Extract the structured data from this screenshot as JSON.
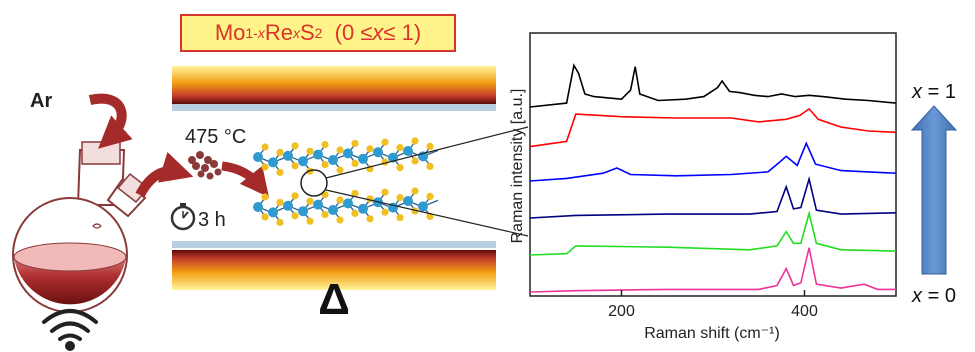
{
  "title": {
    "mo": "Mo",
    "mo_sub": "1-",
    "mo_sub_var": "x",
    "re": "Re",
    "re_sub": "x",
    "s": "S",
    "s_sub": "2",
    "range_open": "(0 ≤ ",
    "range_var": "x",
    "range_close": " ≤ 1)"
  },
  "synthesis": {
    "gas": "Ar",
    "temperature": "475 °C",
    "time": "3 h",
    "heat_symbol": "Δ"
  },
  "chart_data": {
    "type": "line",
    "xlabel": "Raman shift (cm⁻¹)",
    "ylabel": "Raman intensity [a.u.]",
    "x_ticks": [
      200,
      400
    ],
    "xlim": [
      100,
      500
    ],
    "series": [
      {
        "label": "x = 1",
        "color": "#000000",
        "offset": 5,
        "points": [
          [
            100,
            0.0
          ],
          [
            140,
            0.3
          ],
          [
            148,
            3.2
          ],
          [
            153,
            2.6
          ],
          [
            160,
            1.0
          ],
          [
            170,
            0.8
          ],
          [
            200,
            0.6
          ],
          [
            210,
            1.3
          ],
          [
            215,
            3.1
          ],
          [
            220,
            1.0
          ],
          [
            240,
            0.5
          ],
          [
            270,
            0.6
          ],
          [
            290,
            0.8
          ],
          [
            305,
            1.5
          ],
          [
            310,
            2.0
          ],
          [
            318,
            1.2
          ],
          [
            330,
            1.1
          ],
          [
            345,
            0.9
          ],
          [
            360,
            0.8
          ],
          [
            375,
            1.0
          ],
          [
            390,
            0.8
          ],
          [
            405,
            0.9
          ],
          [
            420,
            0.8
          ],
          [
            445,
            0.6
          ],
          [
            470,
            0.5
          ],
          [
            500,
            0.3
          ]
        ]
      },
      {
        "color": "#ff0000",
        "offset": 4,
        "points": [
          [
            100,
            -0.2
          ],
          [
            140,
            0.2
          ],
          [
            150,
            2.3
          ],
          [
            200,
            2.1
          ],
          [
            260,
            2.0
          ],
          [
            320,
            2.0
          ],
          [
            350,
            1.7
          ],
          [
            380,
            1.9
          ],
          [
            395,
            2.2
          ],
          [
            405,
            2.7
          ],
          [
            415,
            1.9
          ],
          [
            440,
            1.3
          ],
          [
            470,
            1.0
          ],
          [
            500,
            0.9
          ]
        ]
      },
      {
        "color": "#0000ff",
        "offset": 3,
        "points": [
          [
            100,
            0.0
          ],
          [
            140,
            0.2
          ],
          [
            180,
            0.6
          ],
          [
            195,
            1.0
          ],
          [
            210,
            0.5
          ],
          [
            260,
            0.4
          ],
          [
            320,
            0.5
          ],
          [
            360,
            0.7
          ],
          [
            372,
            1.4
          ],
          [
            380,
            1.9
          ],
          [
            392,
            1.2
          ],
          [
            402,
            2.9
          ],
          [
            412,
            1.3
          ],
          [
            440,
            0.8
          ],
          [
            470,
            0.7
          ],
          [
            500,
            0.6
          ]
        ]
      },
      {
        "color": "#000080",
        "offset": 2,
        "points": [
          [
            100,
            0.0
          ],
          [
            150,
            0.2
          ],
          [
            250,
            0.3
          ],
          [
            340,
            0.3
          ],
          [
            370,
            0.5
          ],
          [
            380,
            2.4
          ],
          [
            388,
            0.7
          ],
          [
            396,
            0.8
          ],
          [
            405,
            3.0
          ],
          [
            413,
            0.6
          ],
          [
            440,
            0.3
          ],
          [
            500,
            0.4
          ]
        ]
      },
      {
        "color": "#22dd22",
        "offset": 1,
        "points": [
          [
            100,
            0.0
          ],
          [
            140,
            0.1
          ],
          [
            150,
            0.7
          ],
          [
            250,
            0.6
          ],
          [
            340,
            0.4
          ],
          [
            370,
            0.7
          ],
          [
            380,
            1.8
          ],
          [
            388,
            0.9
          ],
          [
            396,
            0.9
          ],
          [
            405,
            3.2
          ],
          [
            413,
            0.9
          ],
          [
            440,
            0.4
          ],
          [
            500,
            0.3
          ]
        ]
      },
      {
        "label": "x = 0",
        "color": "#ee3399",
        "offset": 0,
        "points": [
          [
            100,
            0.0
          ],
          [
            150,
            0.1
          ],
          [
            250,
            0.2
          ],
          [
            350,
            0.2
          ],
          [
            370,
            0.5
          ],
          [
            380,
            1.8
          ],
          [
            388,
            0.5
          ],
          [
            396,
            0.7
          ],
          [
            405,
            3.4
          ],
          [
            413,
            0.6
          ],
          [
            440,
            0.3
          ],
          [
            465,
            0.6
          ],
          [
            480,
            0.2
          ],
          [
            500,
            0.2
          ]
        ]
      }
    ]
  },
  "colors": {
    "arrow": "#a52a2a",
    "flask_body": "#c0392b",
    "substrate": "#b8cde0",
    "mo_atom": "#2e9ad0",
    "s_atom": "#f0c020",
    "big_arrow": "#4f7fbf"
  }
}
